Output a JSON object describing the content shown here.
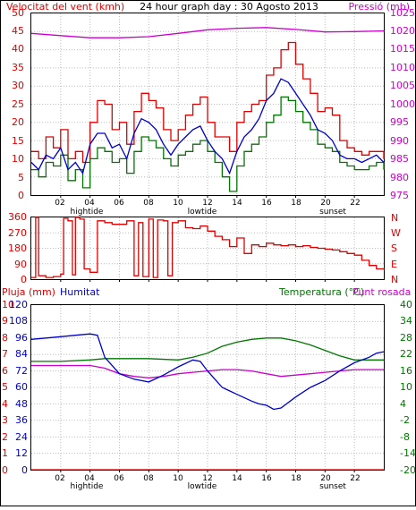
{
  "chart_data": [
    {
      "type": "line",
      "title": "24 hour graph day : 30 Agosto 2013",
      "left_axis_label": "Velocitat del vent (kmh)",
      "right_axis_label": "Pressió (mb)",
      "left_ylim": [
        0,
        50
      ],
      "right_ylim": [
        975,
        1025
      ],
      "left_ticks": [
        "0",
        "5",
        "10",
        "15",
        "20",
        "25",
        "30",
        "35",
        "40",
        "45",
        "50"
      ],
      "right_ticks": [
        "975",
        "980",
        "985",
        "990",
        "995",
        "1000",
        "1005",
        "1010",
        "1015",
        "1020",
        "1025"
      ],
      "x_ticks": [
        "02",
        "04",
        "06",
        "08",
        "10",
        "12",
        "14",
        "16",
        "18",
        "20",
        "22"
      ],
      "x_markers": [
        "hightide",
        "lowtide",
        "sunset"
      ],
      "grid": true,
      "colors": {
        "gust": "#e00000",
        "average": "#0000cc",
        "speed": "#007700",
        "pressure": "#cc00cc"
      },
      "series": [
        {
          "key": "gust",
          "x": [
            0,
            0.5,
            1,
            1.5,
            2,
            2.5,
            3,
            3.5,
            4,
            4.5,
            5,
            5.5,
            6,
            6.5,
            7,
            7.5,
            8,
            8.5,
            9,
            9.5,
            10,
            10.5,
            11,
            11.5,
            12,
            12.5,
            13,
            13.5,
            14,
            14.5,
            15,
            15.5,
            16,
            16.5,
            17,
            17.5,
            18,
            18.5,
            19,
            19.5,
            20,
            20.5,
            21,
            21.5,
            22,
            22.5,
            23,
            23.5,
            24
          ],
          "y": [
            12,
            10,
            16,
            13,
            18,
            10,
            12,
            9,
            20,
            26,
            25,
            18,
            20,
            14,
            23,
            28,
            26,
            24,
            18,
            15,
            18,
            22,
            25,
            27,
            20,
            16,
            16,
            12,
            20,
            23,
            25,
            26,
            33,
            35,
            40,
            42,
            36,
            32,
            28,
            23,
            24,
            22,
            15,
            13,
            12,
            11,
            12,
            12,
            10
          ]
        },
        {
          "key": "average",
          "x": [
            0,
            0.5,
            1,
            1.5,
            2,
            2.5,
            3,
            3.5,
            4,
            4.5,
            5,
            5.5,
            6,
            6.5,
            7,
            7.5,
            8,
            8.5,
            9,
            9.5,
            10,
            10.5,
            11,
            11.5,
            12,
            12.5,
            13,
            13.5,
            14,
            14.5,
            15,
            15.5,
            16,
            16.5,
            17,
            17.5,
            18,
            18.5,
            19,
            19.5,
            20,
            20.5,
            21,
            21.5,
            22,
            22.5,
            23,
            23.5,
            24
          ],
          "y": [
            9,
            7,
            11,
            10,
            13,
            7,
            9,
            6,
            14,
            17,
            17,
            13,
            14,
            10,
            17,
            21,
            20,
            18,
            14,
            11,
            14,
            16,
            18,
            19,
            15,
            12,
            10,
            6,
            12,
            16,
            18,
            21,
            26,
            28,
            32,
            31,
            28,
            25,
            22,
            18,
            17,
            15,
            11,
            10,
            10,
            9,
            10,
            11,
            9
          ]
        },
        {
          "key": "speed",
          "x": [
            0,
            0.5,
            1,
            1.5,
            2,
            2.5,
            3,
            3.5,
            4,
            4.5,
            5,
            5.5,
            6,
            6.5,
            7,
            7.5,
            8,
            8.5,
            9,
            9.5,
            10,
            10.5,
            11,
            11.5,
            12,
            12.5,
            13,
            13.5,
            14,
            14.5,
            15,
            15.5,
            16,
            16.5,
            17,
            17.5,
            18,
            18.5,
            19,
            19.5,
            20,
            20.5,
            21,
            21.5,
            22,
            22.5,
            23,
            23.5,
            24
          ],
          "y": [
            7,
            5,
            9,
            8,
            11,
            4,
            7,
            2,
            10,
            13,
            12,
            9,
            10,
            6,
            12,
            16,
            15,
            13,
            10,
            8,
            11,
            12,
            14,
            15,
            12,
            9,
            5,
            1,
            8,
            12,
            14,
            16,
            20,
            22,
            27,
            26,
            23,
            20,
            18,
            14,
            13,
            12,
            9,
            8,
            7,
            7,
            8,
            9,
            7
          ]
        },
        {
          "key": "pressure",
          "x": [
            0,
            2,
            4,
            6,
            8,
            10,
            12,
            14,
            16,
            18,
            20,
            22,
            24
          ],
          "y": [
            1019.5,
            1018.9,
            1018.3,
            1018.3,
            1018.6,
            1019.5,
            1020.5,
            1020.9,
            1021.1,
            1020.6,
            1019.9,
            1020.0,
            1020.2
          ]
        }
      ]
    },
    {
      "type": "line",
      "left_ylim": [
        0,
        360
      ],
      "left_ticks": [
        "0",
        "90",
        "180",
        "270",
        "360"
      ],
      "right_labels": [
        "N",
        "W",
        "S",
        "E",
        "N"
      ],
      "grid": true,
      "colors": {
        "direction": "#e00000"
      },
      "series": [
        {
          "key": "direction",
          "x": [
            0,
            0.3,
            0.5,
            1,
            1.5,
            2,
            2.2,
            2.5,
            2.8,
            3,
            3.3,
            3.6,
            4,
            4.5,
            5,
            5.5,
            6,
            6.5,
            7,
            7.3,
            7.6,
            8,
            8.3,
            8.6,
            9,
            9.3,
            9.6,
            10,
            10.5,
            11,
            11.5,
            12,
            12.5,
            13,
            13.5,
            14,
            14.5,
            15,
            15.5,
            16,
            16.5,
            17,
            17.5,
            18,
            18.5,
            19,
            19.5,
            20,
            20.5,
            21,
            21.5,
            22,
            22.5,
            23,
            23.5,
            24
          ],
          "y": [
            10,
            360,
            20,
            10,
            15,
            30,
            355,
            340,
            25,
            360,
            350,
            60,
            40,
            340,
            330,
            320,
            320,
            340,
            20,
            330,
            15,
            350,
            10,
            345,
            340,
            20,
            330,
            340,
            300,
            295,
            310,
            280,
            250,
            230,
            190,
            240,
            150,
            200,
            190,
            210,
            200,
            195,
            200,
            190,
            195,
            185,
            180,
            175,
            170,
            160,
            150,
            140,
            110,
            80,
            60,
            60
          ]
        }
      ]
    },
    {
      "type": "line",
      "left_axis_label": "Pluja (mm)",
      "left_axis_label_2": "Humitat",
      "right_axis_label": "Temperatura (°C)",
      "right_axis_label_2": "Punt rosada",
      "rain_ticks": [
        "0",
        "1",
        "2",
        "3",
        "4",
        "5",
        "6",
        "7",
        "8",
        "9",
        "10"
      ],
      "humidity_ticks": [
        "0",
        "12",
        "24",
        "36",
        "48",
        "60",
        "72",
        "84",
        "96",
        "108",
        "120"
      ],
      "right_ticks": [
        "-20",
        "-14",
        "-8",
        "-2",
        "4",
        "10",
        "16",
        "22",
        "28",
        "34",
        "40"
      ],
      "rain_ylim": [
        0,
        10
      ],
      "humidity_ylim": [
        0,
        120
      ],
      "temperature_ylim": [
        -20,
        40
      ],
      "x_ticks": [
        "02",
        "04",
        "06",
        "08",
        "10",
        "12",
        "14",
        "16",
        "18",
        "20",
        "22"
      ],
      "x_markers": [
        "hightide",
        "lowtide",
        "sunset"
      ],
      "grid": true,
      "colors": {
        "rain": "#e00000",
        "humidity": "#0000cc",
        "temperature": "#007700",
        "dewpoint": "#cc00cc"
      },
      "series": [
        {
          "key": "humidity",
          "x": [
            0,
            1,
            2,
            3,
            4,
            4.5,
            5,
            6,
            7,
            8,
            9,
            9.5,
            10,
            11,
            11.5,
            12,
            12.5,
            13,
            14,
            15,
            15.5,
            16,
            16.5,
            17,
            18,
            19,
            20,
            21,
            22,
            23,
            23.5,
            24
          ],
          "y": [
            95,
            96,
            97,
            98,
            99,
            98,
            82,
            70,
            66,
            64,
            69,
            72,
            75,
            80,
            79,
            72,
            66,
            60,
            55,
            50,
            48,
            47,
            44,
            45,
            53,
            60,
            65,
            72,
            78,
            82,
            85,
            86
          ]
        },
        {
          "key": "temperature",
          "x": [
            0,
            2,
            4,
            5,
            6,
            8,
            10,
            11,
            12,
            13,
            14,
            15,
            16,
            17,
            18,
            19,
            20,
            21,
            22,
            24
          ],
          "y": [
            19.5,
            19.5,
            20,
            20.5,
            20.5,
            20.5,
            20,
            21,
            22.5,
            25,
            26.5,
            27.5,
            28,
            28,
            27,
            25.5,
            23.5,
            21.5,
            20,
            20
          ]
        },
        {
          "key": "dewpoint",
          "x": [
            0,
            2,
            4,
            5,
            6,
            7,
            8,
            9,
            10,
            11,
            12,
            13,
            14,
            15,
            16,
            17,
            18,
            19,
            20,
            21,
            22,
            23,
            24
          ],
          "y": [
            18,
            18,
            18,
            17,
            15,
            14,
            13.5,
            14,
            15,
            15.5,
            16,
            16.5,
            16.5,
            16,
            15,
            14,
            14.5,
            15,
            15.5,
            16,
            16.5,
            16.5,
            16.5
          ]
        },
        {
          "key": "rain",
          "x": [
            0,
            24
          ],
          "y": [
            0,
            0
          ]
        }
      ]
    }
  ]
}
